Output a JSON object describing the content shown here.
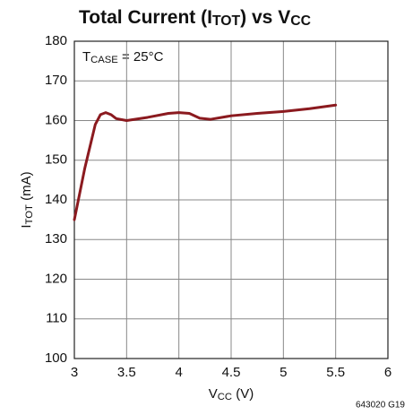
{
  "chart_data": {
    "type": "line",
    "title": [
      "Total Current (I",
      "TOT",
      ") vs V",
      "CC"
    ],
    "xlabel": [
      "V",
      "CC",
      " (V)"
    ],
    "ylabel": [
      "I",
      "TOT",
      " (mA)"
    ],
    "annotation": [
      "T",
      "CASE",
      " = 25°C"
    ],
    "footnote": "643020 G19",
    "x": [
      3,
      3.1,
      3.2,
      3.25,
      3.3,
      3.35,
      3.4,
      3.5,
      3.7,
      3.9,
      4.0,
      4.1,
      4.2,
      4.3,
      4.5,
      4.75,
      5,
      5.25,
      5.5
    ],
    "series": [
      {
        "color": "#8b1a1f",
        "values": [
          135,
          148,
          159,
          161.5,
          162,
          161.5,
          160.5,
          160,
          160.8,
          161.8,
          162,
          161.8,
          160.6,
          160.3,
          161.2,
          161.8,
          162.3,
          163,
          163.9
        ]
      }
    ],
    "xlim": [
      3,
      6
    ],
    "xticks": [
      3,
      3.5,
      4,
      4.5,
      5,
      5.5,
      6
    ],
    "ylim": [
      100,
      180
    ],
    "yticks": [
      100,
      110,
      120,
      130,
      140,
      150,
      160,
      170,
      180
    ],
    "grid": true
  }
}
